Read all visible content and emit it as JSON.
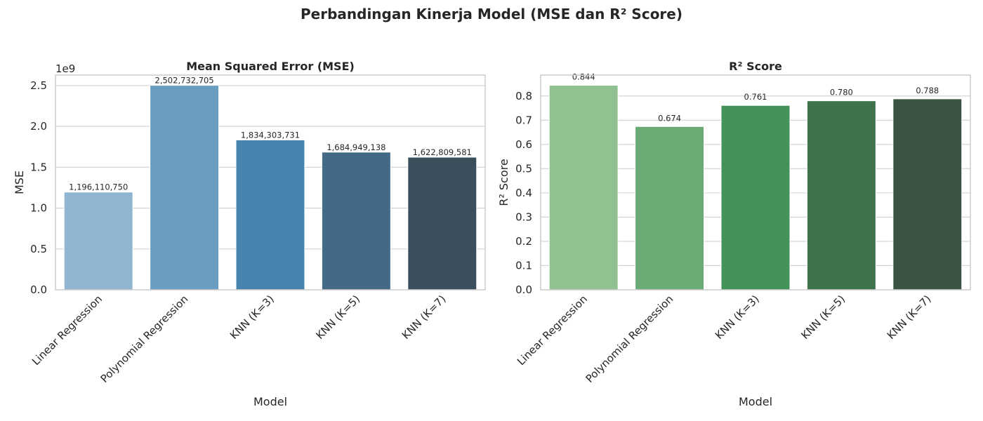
{
  "figure": {
    "suptitle": "Perbandingan Kinerja Model (MSE dan R² Score)"
  },
  "chart_data": [
    {
      "type": "bar",
      "title": "Mean Squared Error (MSE)",
      "xlabel": "Model",
      "ylabel": "MSE",
      "offset_text": "1e9",
      "categories": [
        "Linear Regression",
        "Polynomial Regression",
        "KNN (K=3)",
        "KNN (K=5)",
        "KNN (K=7)"
      ],
      "values": [
        1196110750,
        2502732705,
        1834303731,
        1684949138,
        1622809581
      ],
      "value_labels": [
        "1,196,110,750",
        "2,502,732,705",
        "1,834,303,731",
        "1,684,949,138",
        "1,622,809,581"
      ],
      "ylim": [
        0,
        2627869340
      ],
      "yticks": [
        0,
        500000000,
        1000000000,
        1500000000,
        2000000000,
        2500000000
      ],
      "ytick_labels": [
        "0.0",
        "0.5",
        "1.0",
        "1.5",
        "2.0",
        "2.5"
      ],
      "grid": true,
      "colors": [
        "#8fb5d0",
        "#6a9dc0",
        "#4883b0",
        "#426985",
        "#3a4e5c"
      ]
    },
    {
      "type": "bar",
      "title": "R² Score",
      "xlabel": "Model",
      "ylabel": "R² Score",
      "categories": [
        "Linear Regression",
        "Polynomial Regression",
        "KNN (K=3)",
        "KNN (K=5)",
        "KNN (K=7)"
      ],
      "values": [
        0.844,
        0.674,
        0.761,
        0.78,
        0.788
      ],
      "value_labels": [
        "0.844",
        "0.674",
        "0.761",
        "0.780",
        "0.788"
      ],
      "ylim": [
        0,
        0.8862
      ],
      "yticks": [
        0,
        0.1,
        0.2,
        0.3,
        0.4,
        0.5,
        0.6,
        0.7,
        0.8
      ],
      "ytick_labels": [
        "0.0",
        "0.1",
        "0.2",
        "0.3",
        "0.4",
        "0.5",
        "0.6",
        "0.7",
        "0.8"
      ],
      "grid": true,
      "colors": [
        "#90c190",
        "#6aaa75",
        "#44925a",
        "#3e734b",
        "#3a5342"
      ]
    }
  ]
}
